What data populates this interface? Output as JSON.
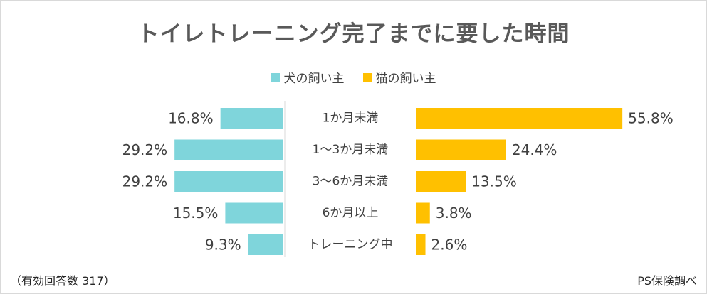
{
  "chart_data": {
    "type": "bar",
    "title": "トイレトレーニング完了までに要した時間",
    "categories": [
      "1か月未満",
      "1～3か月未満",
      "3～6か月未満",
      "6か月以上",
      "トレーニング中"
    ],
    "series": [
      {
        "name": "犬の飼い主",
        "values": [
          16.8,
          29.2,
          29.2,
          15.5,
          9.3
        ],
        "labels": [
          "16.8%",
          "29.2%",
          "29.2%",
          "15.5%",
          "9.3%"
        ],
        "color": "#7fd5db"
      },
      {
        "name": "猫の飼い主",
        "values": [
          55.8,
          24.4,
          13.5,
          3.8,
          2.6
        ],
        "labels": [
          "55.8%",
          "24.4%",
          "13.5%",
          "3.8%",
          "2.6%"
        ],
        "color": "#ffc000"
      }
    ],
    "legend_position": "top-center",
    "grid": false
  },
  "footer": {
    "note": "（有効回答数 317）",
    "source": "PS保険調べ"
  }
}
